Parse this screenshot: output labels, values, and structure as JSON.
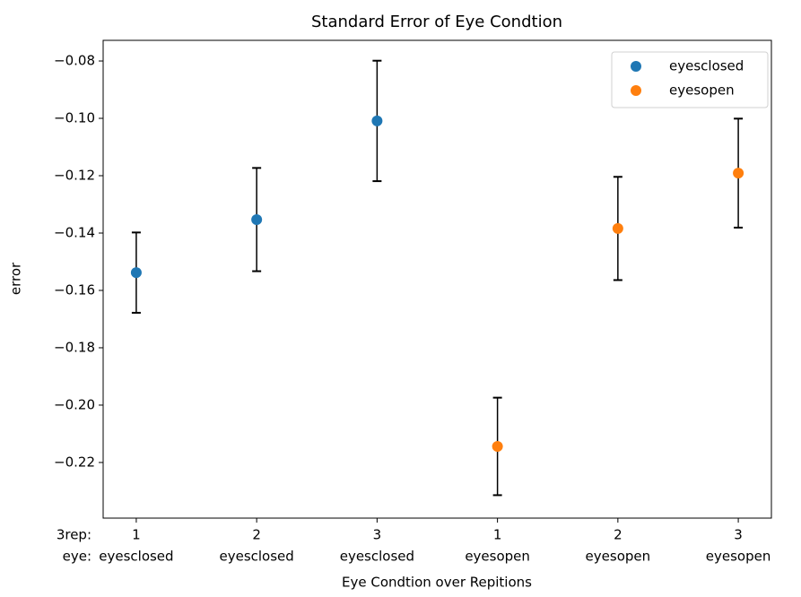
{
  "chart_data": {
    "type": "scatter",
    "title": "Standard Error of Eye Condtion",
    "x_label": "Eye Condtion over Repitions",
    "y_label": "error",
    "x_tick_prefix": [
      "3rep:",
      "eye:"
    ],
    "categories": [
      [
        "1",
        "eyesclosed"
      ],
      [
        "2",
        "eyesclosed"
      ],
      [
        "3",
        "eyesclosed"
      ],
      [
        "1",
        "eyesopen"
      ],
      [
        "2",
        "eyesopen"
      ],
      [
        "3",
        "eyesopen"
      ]
    ],
    "series": [
      {
        "name": "eyesclosed",
        "color": "#1f77b4",
        "values": [
          -0.1538,
          -0.1353,
          -0.1009,
          null,
          null,
          null
        ],
        "errors": [
          0.014,
          0.018,
          0.021,
          null,
          null,
          null
        ]
      },
      {
        "name": "eyesopen",
        "color": "#ff7f0e",
        "values": [
          null,
          null,
          null,
          -0.2144,
          -0.1384,
          -0.1191
        ],
        "errors": [
          null,
          null,
          null,
          0.017,
          0.018,
          0.019
        ]
      }
    ],
    "error_color": "#000000",
    "ylim": [
      -0.2394,
      -0.0728
    ],
    "yticks": [
      {
        "value": -0.08,
        "label": "−0.08"
      },
      {
        "value": -0.1,
        "label": "−0.10"
      },
      {
        "value": -0.12,
        "label": "−0.12"
      },
      {
        "value": -0.14,
        "label": "−0.14"
      },
      {
        "value": -0.16,
        "label": "−0.16"
      },
      {
        "value": -0.18,
        "label": "−0.18"
      },
      {
        "value": -0.2,
        "label": "−0.20"
      },
      {
        "value": -0.22,
        "label": "−0.22"
      }
    ],
    "legend": "upper right",
    "grid": false
  }
}
